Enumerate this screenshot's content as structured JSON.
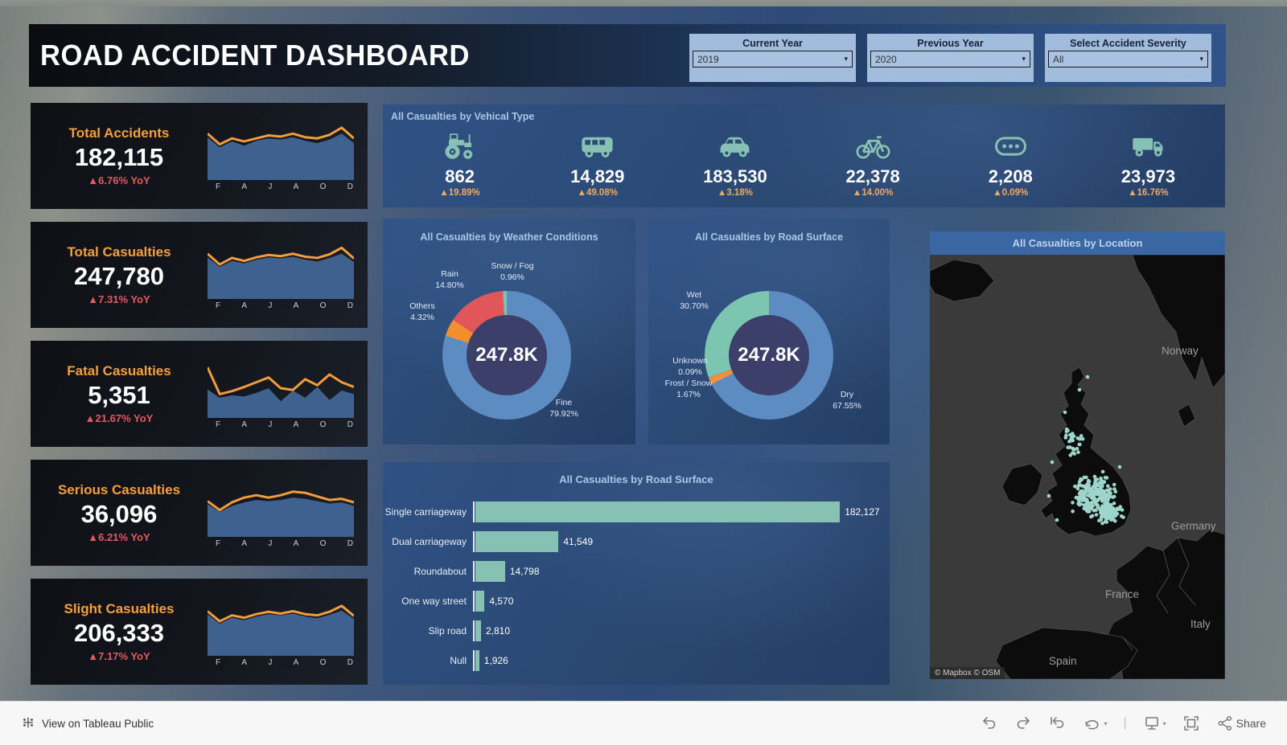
{
  "header": {
    "title": "ROAD ACCIDENT DASHBOARD"
  },
  "icons": {
    "caret": "▾"
  },
  "filters": [
    {
      "label": "Current Year",
      "value": "2019"
    },
    {
      "label": "Previous Year",
      "value": "2020"
    },
    {
      "label": "Select Accident Severity",
      "value": "All"
    }
  ],
  "sparkline_months": [
    "F",
    "A",
    "J",
    "A",
    "O",
    "D"
  ],
  "colors": {
    "spark_area": "#3f618f",
    "spark_line": "#f49c3c",
    "teal": "#87c1b4",
    "dot": "#a5e0d6",
    "kpi_title": "#f59f3d",
    "yoy_red": "#e05a60",
    "panel_blue": "#2c4b79"
  },
  "kpis": [
    {
      "title": "Total Accidents",
      "value": "182,115",
      "yoy": "▲6.76% YoY",
      "spark": {
        "area": [
          72,
          55,
          65,
          58,
          66,
          70,
          68,
          72,
          66,
          62,
          68,
          78,
          62
        ],
        "line": [
          78,
          60,
          70,
          65,
          70,
          75,
          73,
          78,
          72,
          70,
          76,
          88,
          70
        ]
      }
    },
    {
      "title": "Total Casualties",
      "value": "247,780",
      "yoy": "▲7.31% YoY",
      "spark": {
        "area": [
          70,
          54,
          64,
          60,
          66,
          70,
          68,
          71,
          66,
          63,
          69,
          76,
          62
        ],
        "line": [
          76,
          58,
          69,
          64,
          70,
          74,
          72,
          76,
          71,
          69,
          75,
          86,
          68
        ]
      }
    },
    {
      "title": "Fatal Casualties",
      "value": "5,351",
      "yoy": "▲21.67% YoY",
      "spark": {
        "area": [
          48,
          34,
          38,
          36,
          42,
          50,
          28,
          46,
          34,
          52,
          30,
          46,
          40
        ],
        "line": [
          85,
          40,
          45,
          52,
          60,
          68,
          50,
          47,
          65,
          55,
          73,
          60,
          52
        ]
      }
    },
    {
      "title": "Serious Casualties",
      "value": "36,096",
      "yoy": "▲6.21% YoY",
      "spark": {
        "area": [
          55,
          42,
          52,
          58,
          62,
          60,
          62,
          66,
          64,
          60,
          56,
          58,
          52
        ],
        "line": [
          60,
          45,
          58,
          66,
          70,
          66,
          70,
          76,
          74,
          68,
          62,
          64,
          58
        ]
      }
    },
    {
      "title": "Slight Casualties",
      "value": "206,333",
      "yoy": "▲7.17% YoY",
      "spark": {
        "area": [
          70,
          54,
          64,
          60,
          66,
          70,
          68,
          71,
          66,
          63,
          69,
          76,
          62
        ],
        "line": [
          75,
          58,
          68,
          64,
          70,
          74,
          71,
          75,
          70,
          68,
          74,
          84,
          67
        ]
      }
    }
  ],
  "vehicles": {
    "title": "All Casualties by Vehical Type",
    "items": [
      {
        "icon": "tractor-icon",
        "value": "862",
        "pct": "▲19.89%"
      },
      {
        "icon": "bus-icon",
        "value": "14,829",
        "pct": "▲49.08%"
      },
      {
        "icon": "car-icon",
        "value": "183,530",
        "pct": "▲3.18%"
      },
      {
        "icon": "bicycle-icon",
        "value": "22,378",
        "pct": "▲14.00%"
      },
      {
        "icon": "other-vehicle-icon",
        "value": "2,208",
        "pct": "▲0.09%"
      },
      {
        "icon": "truck-icon",
        "value": "23,973",
        "pct": "▲16.76%"
      }
    ]
  },
  "map": {
    "title": "All Casualties by Location",
    "labels": [
      "Norway",
      "Germany",
      "France",
      "Spain",
      "Italy"
    ],
    "attribution": "© Mapbox  © OSM"
  },
  "footer": {
    "view_link": "View on Tableau Public",
    "share_label": "Share"
  },
  "chart_data": [
    {
      "id": "vehicle_type",
      "type": "table",
      "title": "All Casualties by Vehical Type",
      "columns": [
        "vehicle",
        "casualties",
        "yoy_change"
      ],
      "rows": [
        [
          "tractor",
          862,
          "+19.89%"
        ],
        [
          "bus",
          14829,
          "+49.08%"
        ],
        [
          "car",
          183530,
          "+3.18%"
        ],
        [
          "bicycle",
          22378,
          "+14.00%"
        ],
        [
          "other",
          2208,
          "+0.09%"
        ],
        [
          "truck",
          23973,
          "+16.76%"
        ]
      ]
    },
    {
      "id": "weather_donut",
      "type": "pie",
      "title": "All Casualties by Weather Conditions",
      "center_total": "247.8K",
      "slices": [
        {
          "label": "Fine",
          "pct": 79.92,
          "pct_label": "79.92%",
          "color": "#5d8cc2"
        },
        {
          "label": "Others",
          "pct": 4.32,
          "pct_label": "4.32%",
          "color": "#f28e2b"
        },
        {
          "label": "Rain",
          "pct": 14.8,
          "pct_label": "14.80%",
          "color": "#e15759"
        },
        {
          "label": "Snow / Fog",
          "pct": 0.96,
          "pct_label": "0.96%",
          "color": "#76c5bb"
        }
      ]
    },
    {
      "id": "road_donut",
      "type": "pie",
      "title": "All Casualties by Road Surface",
      "center_total": "247.8K",
      "slices": [
        {
          "label": "Dry",
          "pct": 67.55,
          "pct_label": "67.55%",
          "color": "#5d8cc2"
        },
        {
          "label": "Frost / Snow",
          "pct": 1.67,
          "pct_label": "1.67%",
          "color": "#f2903c"
        },
        {
          "label": "Unknown",
          "pct": 0.09,
          "pct_label": "0.09%",
          "color": "#e15759"
        },
        {
          "label": "Wet",
          "pct": 30.7,
          "pct_label": "30.70%",
          "color": "#7cc5b0"
        }
      ]
    },
    {
      "id": "road_bar",
      "type": "bar",
      "title": "All Casualties by Road Surface",
      "categories": [
        "Single carriageway",
        "Dual carriageway",
        "Roundabout",
        "One way street",
        "Slip road",
        "Null"
      ],
      "values": [
        182127,
        41549,
        14798,
        4570,
        2810,
        1926
      ],
      "value_labels": [
        "182,127",
        "41,549",
        "14,798",
        "4,570",
        "2,810",
        "1,926"
      ],
      "xlabel": "",
      "ylabel": "",
      "legend": "none",
      "grid": false
    },
    {
      "id": "location_map",
      "type": "scatter",
      "title": "All Casualties by Location",
      "description": "Teal incident points densely clustered over England with sparser points in Scotland, on a dark Mapbox map of north-west Europe",
      "map_labels": [
        "Norway",
        "Germany",
        "France",
        "Spain",
        "Italy"
      ]
    }
  ]
}
